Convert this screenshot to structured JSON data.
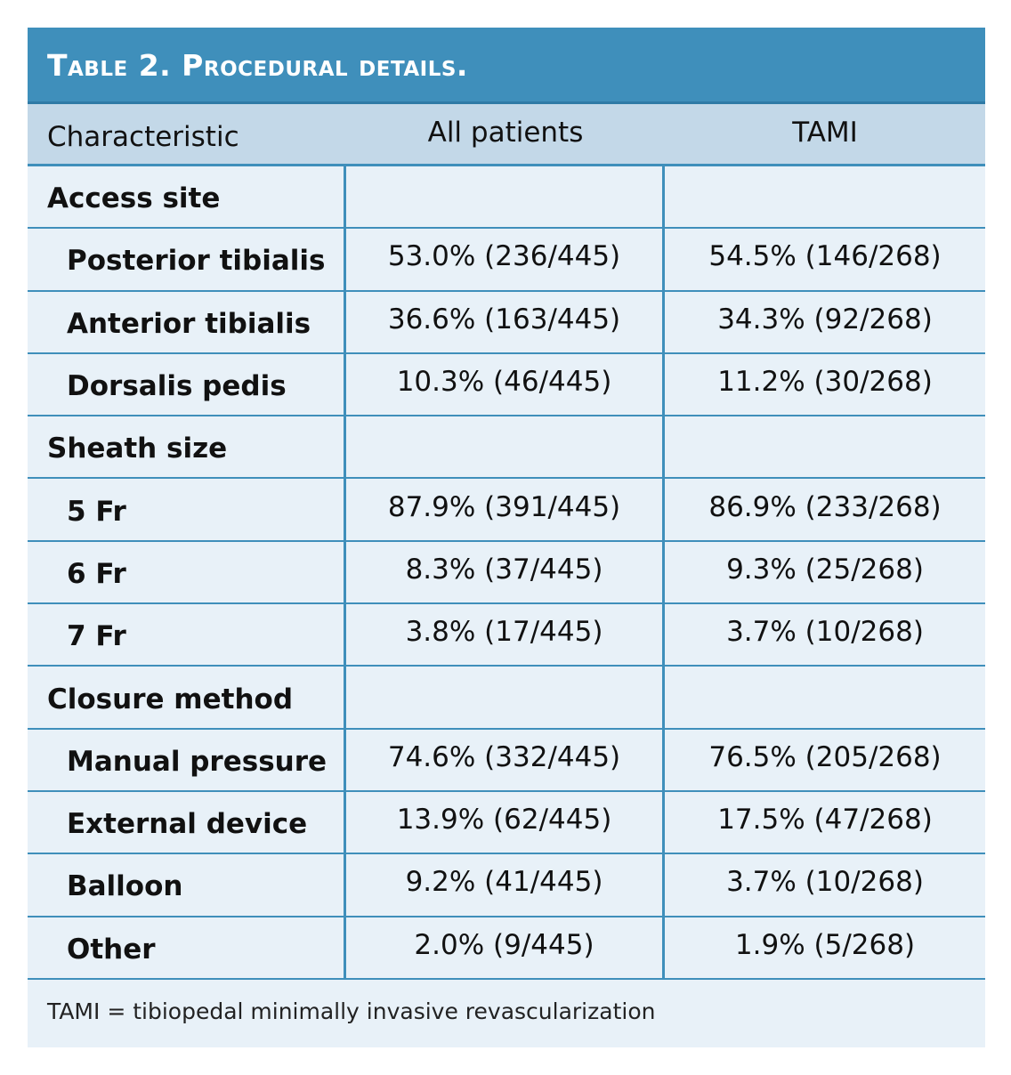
{
  "table": {
    "title": "Table 2.  Procedural details.",
    "headers": [
      "Characteristic",
      "All patients",
      "TAMI"
    ],
    "rows": [
      {
        "label": "Access site",
        "all": "",
        "tami": "",
        "group": true
      },
      {
        "label": "Posterior tibialis",
        "all": "53.0% (236/445)",
        "tami": "54.5% (146/268)",
        "group": false
      },
      {
        "label": "Anterior tibialis",
        "all": "36.6% (163/445)",
        "tami": "34.3% (92/268)",
        "group": false
      },
      {
        "label": "Dorsalis pedis",
        "all": "10.3% (46/445)",
        "tami": "11.2% (30/268)",
        "group": false
      },
      {
        "label": "Sheath size",
        "all": "",
        "tami": "",
        "group": true
      },
      {
        "label": "5 Fr",
        "all": "87.9% (391/445)",
        "tami": "86.9% (233/268)",
        "group": false
      },
      {
        "label": "6 Fr",
        "all": "8.3% (37/445)",
        "tami": "9.3% (25/268)",
        "group": false
      },
      {
        "label": "7 Fr",
        "all": "3.8% (17/445)",
        "tami": "3.7% (10/268)",
        "group": false
      },
      {
        "label": "Closure method",
        "all": "",
        "tami": "",
        "group": true
      },
      {
        "label": "Manual pressure",
        "all": "74.6% (332/445)",
        "tami": "76.5% (205/268)",
        "group": false
      },
      {
        "label": "External device",
        "all": "13.9% (62/445)",
        "tami": "17.5% (47/268)",
        "group": false
      },
      {
        "label": "Balloon",
        "all": "9.2% (41/445)",
        "tami": "3.7% (10/268)",
        "group": false
      },
      {
        "label": "Other",
        "all": "2.0% (9/445)",
        "tami": "1.9% (5/268)",
        "group": false
      }
    ],
    "footnote": "TAMI = tibiopedal minimally invasive revascularization"
  },
  "colors": {
    "title_bar": "#3f8fbb",
    "header_bg": "#c3d8e8",
    "row_bg": "#e8f1f8",
    "rule": "#3f8fbb"
  }
}
